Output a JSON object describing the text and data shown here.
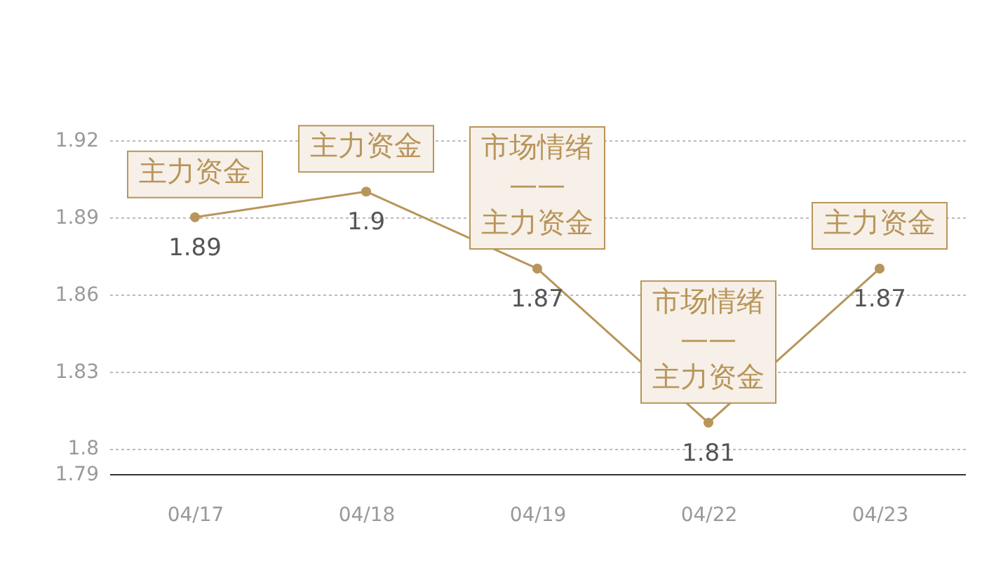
{
  "chart_data": {
    "type": "line",
    "categories": [
      "04/17",
      "04/18",
      "04/19",
      "04/22",
      "04/23"
    ],
    "series": [
      {
        "color": "#b8955a",
        "values": [
          1.89,
          1.9,
          1.87,
          1.81,
          1.87
        ]
      }
    ],
    "ylim": [
      1.79,
      1.92
    ],
    "yticks": [
      1.79,
      {
        "value": 1.8,
        "label": "1.8"
      },
      1.83,
      1.86,
      1.89,
      1.92
    ],
    "grid": "y",
    "marker": "circle",
    "data_labels": true,
    "annotations": [
      {
        "text": "主力资金",
        "x": "04/17",
        "y": 1.89
      },
      {
        "text": "主力资金",
        "x": "04/18",
        "y": 1.9
      },
      {
        "text": "市场情绪\n——\n主力资金",
        "x": "04/19",
        "y": 1.87
      },
      {
        "text": "市场情绪\n——\n主力资金",
        "x": "04/22",
        "y": 1.81
      },
      {
        "text": "主力资金",
        "x": "04/23",
        "y": 1.87
      }
    ]
  }
}
